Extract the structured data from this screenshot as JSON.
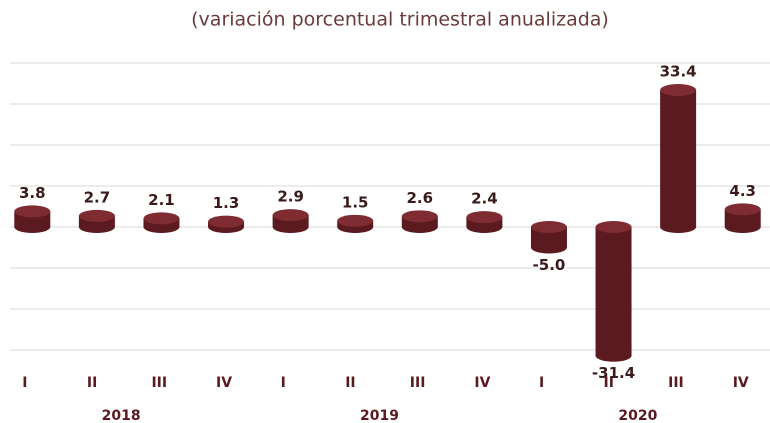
{
  "chart_data": {
    "type": "bar",
    "title": "(variación porcentual trimestral anualizada)",
    "categories": [
      "I",
      "II",
      "III",
      "IV",
      "I",
      "II",
      "III",
      "IV",
      "I",
      "II",
      "III",
      "IV"
    ],
    "groups": [
      "2018",
      "2019",
      "2020"
    ],
    "values": [
      3.8,
      2.7,
      2.1,
      1.3,
      2.9,
      1.5,
      2.6,
      2.4,
      -5.0,
      -31.4,
      33.4,
      4.3
    ],
    "value_labels": [
      "3.8",
      "2.7",
      "2.1",
      "1.3",
      "2.9",
      "1.5",
      "2.6",
      "2.4",
      "-5.0",
      "-31.4",
      "33.4",
      "4.3"
    ],
    "color": "#5a1a1f",
    "ylim": [
      -30,
      40
    ],
    "yticks": [
      -30,
      -20,
      -10,
      0,
      10,
      20,
      30,
      40
    ],
    "grid": true
  }
}
